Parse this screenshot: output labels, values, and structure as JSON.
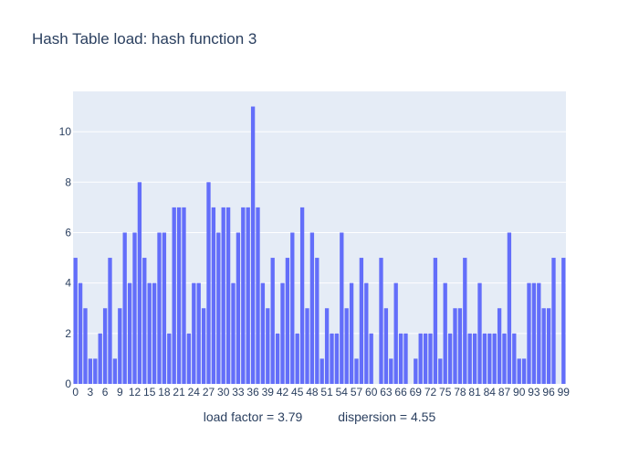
{
  "chart_data": {
    "type": "bar",
    "title": "Hash Table load: hash function 3",
    "xlabel": "load factor = 3.79          dispersion = 4.55",
    "ylabel": "",
    "ylim": [
      0,
      11.6
    ],
    "yticks": [
      0,
      2,
      4,
      6,
      8,
      10
    ],
    "xtick_step": 3,
    "x_range": [
      0,
      99
    ],
    "grid": true,
    "bar_color": "#636efa",
    "plot_bg": "#e5ecf6",
    "values": [
      5,
      4,
      3,
      1,
      1,
      2,
      3,
      5,
      1,
      3,
      6,
      4,
      6,
      8,
      5,
      4,
      4,
      6,
      6,
      2,
      7,
      7,
      7,
      2,
      4,
      4,
      3,
      8,
      7,
      6,
      7,
      7,
      4,
      6,
      7,
      7,
      11,
      7,
      4,
      3,
      5,
      2,
      4,
      5,
      6,
      2,
      7,
      3,
      6,
      5,
      1,
      3,
      2,
      2,
      6,
      3,
      4,
      1,
      5,
      4,
      2,
      0,
      5,
      3,
      1,
      4,
      2,
      2,
      0,
      1,
      2,
      2,
      2,
      5,
      1,
      4,
      2,
      3,
      3,
      5,
      2,
      2,
      4,
      2,
      2,
      2,
      3,
      2,
      6,
      2,
      1,
      1,
      4,
      4,
      4,
      3,
      3,
      5,
      0,
      5
    ]
  }
}
